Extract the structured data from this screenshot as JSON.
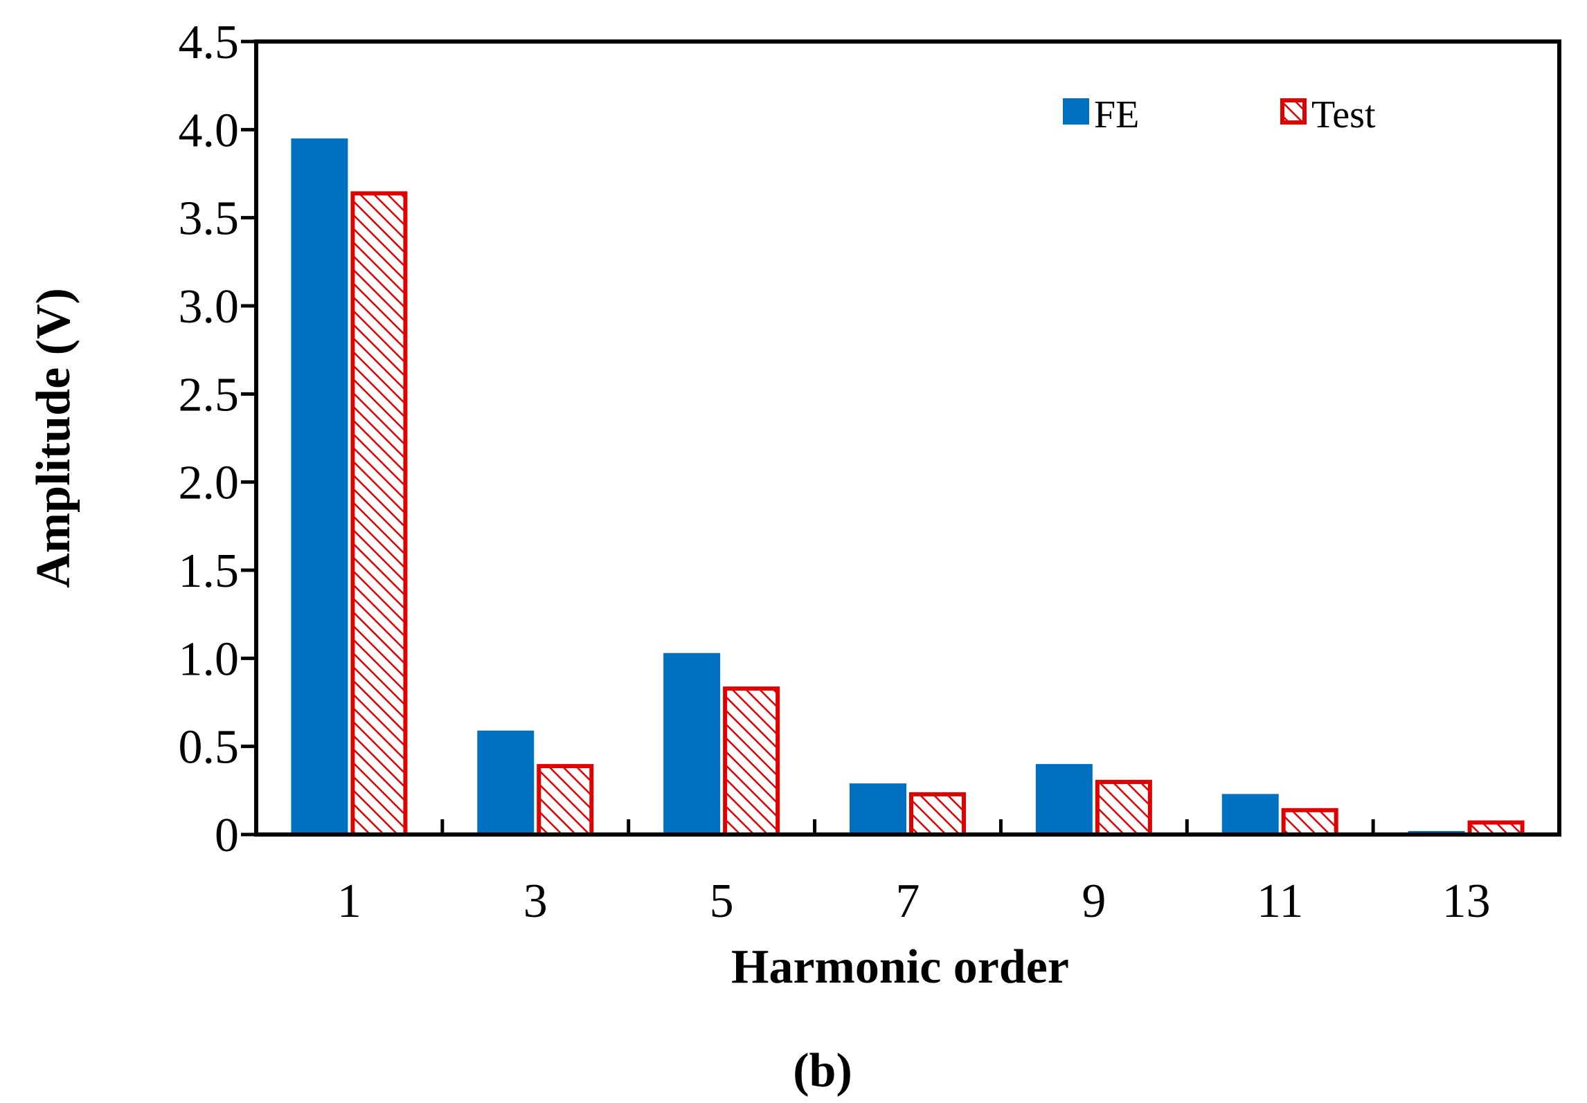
{
  "chart_data": {
    "type": "bar",
    "panel_label": "(b)",
    "xlabel": "Harmonic order",
    "ylabel": "Amplitude (V)",
    "categories": [
      "1",
      "3",
      "5",
      "7",
      "9",
      "11",
      "13"
    ],
    "ylim": [
      0,
      4.5
    ],
    "y_ticks": [
      {
        "value": 0,
        "label": "0"
      },
      {
        "value": 0.5,
        "label": "0.5"
      },
      {
        "value": 1.0,
        "label": "1.0"
      },
      {
        "value": 1.5,
        "label": "1.5"
      },
      {
        "value": 2.0,
        "label": "2.0"
      },
      {
        "value": 2.5,
        "label": "2.5"
      },
      {
        "value": 3.0,
        "label": "3.0"
      },
      {
        "value": 3.5,
        "label": "3.5"
      },
      {
        "value": 4.0,
        "label": "4.0"
      },
      {
        "value": 4.5,
        "label": "4.5"
      }
    ],
    "grid": false,
    "legend_position": "top-right",
    "series": [
      {
        "name": "FE",
        "values": [
          3.95,
          0.59,
          1.03,
          0.29,
          0.4,
          0.23,
          0.02
        ],
        "color": "#0070C0",
        "style": "solid"
      },
      {
        "name": "Test",
        "values": [
          3.65,
          0.4,
          0.84,
          0.24,
          0.31,
          0.15,
          0.08
        ],
        "color": "#E00000",
        "style": "hatched"
      }
    ]
  }
}
